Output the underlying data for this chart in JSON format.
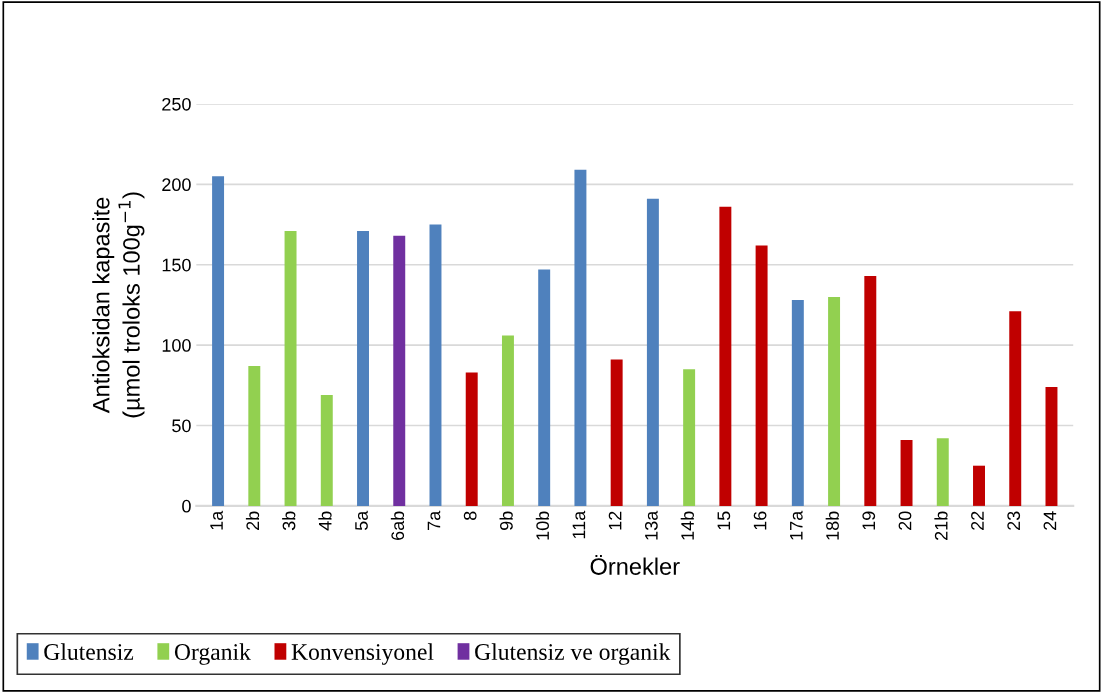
{
  "chart_data": {
    "type": "bar",
    "xlabel": "Örnekler",
    "ylabel": "Antioksidan kapasite\n(µmol troloks 100g$^{−1}$)",
    "categories": [
      "1a",
      "2b",
      "3b",
      "4b",
      "5a",
      "6ab",
      "7a",
      "8",
      "9b",
      "10b",
      "11a",
      "12",
      "13a",
      "14b",
      "15",
      "16",
      "17a",
      "18b",
      "19",
      "20",
      "21b",
      "22",
      "23",
      "24"
    ],
    "series": [
      {
        "name": "Glutensiz",
        "color": "#4f81bd",
        "values": [
          205,
          null,
          null,
          null,
          171,
          null,
          175,
          null,
          null,
          147,
          209,
          null,
          191,
          null,
          null,
          null,
          128,
          null,
          null,
          null,
          null,
          null,
          null,
          null
        ]
      },
      {
        "name": "Organik",
        "color": "#92d050",
        "values": [
          null,
          87,
          171,
          69,
          null,
          null,
          null,
          null,
          106,
          null,
          null,
          null,
          null,
          85,
          null,
          null,
          null,
          130,
          null,
          null,
          42,
          null,
          null,
          null
        ]
      },
      {
        "name": "Konvensiyonel",
        "color": "#c00000",
        "values": [
          null,
          null,
          null,
          null,
          null,
          null,
          null,
          83,
          null,
          null,
          null,
          91,
          null,
          null,
          186,
          162,
          null,
          null,
          143,
          41,
          null,
          25,
          121,
          74
        ]
      },
      {
        "name": "Glutensiz ve organik",
        "color": "#7030a0",
        "values": [
          null,
          null,
          null,
          null,
          null,
          168,
          null,
          null,
          null,
          null,
          null,
          null,
          null,
          null,
          null,
          null,
          null,
          null,
          null,
          null,
          null,
          null,
          null,
          null
        ]
      }
    ],
    "ylim": [
      0,
      250
    ],
    "yticks": [
      0,
      50,
      100,
      150,
      200,
      250
    ],
    "grid": "y",
    "legend": "bottom"
  }
}
